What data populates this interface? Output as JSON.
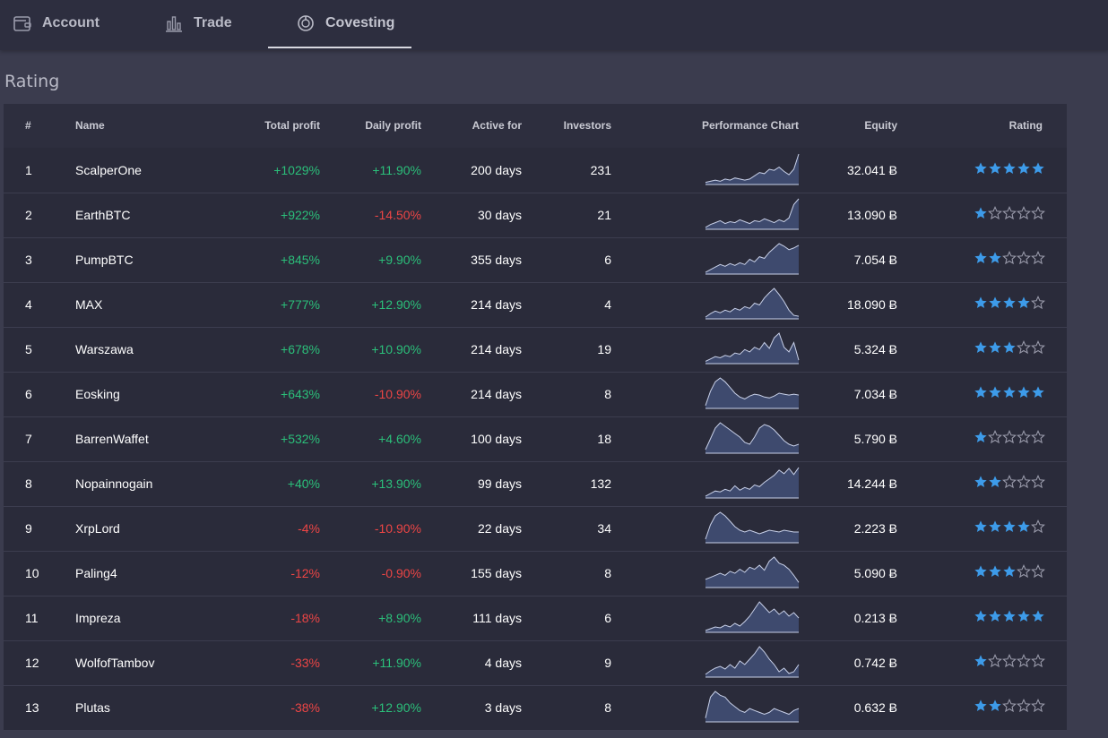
{
  "tabs": [
    {
      "label": "Account",
      "icon": "wallet-icon"
    },
    {
      "label": "Trade",
      "icon": "chart-bars-icon"
    },
    {
      "label": "Covesting",
      "icon": "covesting-icon",
      "active": true
    }
  ],
  "page_title": "Rating",
  "columns": {
    "rank": "#",
    "name": "Name",
    "total_profit": "Total profit",
    "daily_profit": "Daily profit",
    "active_for": "Active for",
    "investors": "Investors",
    "performance": "Performance Chart",
    "equity": "Equity",
    "rating": "Rating"
  },
  "colors": {
    "positive": "#2bbf7a",
    "negative": "#ec4545",
    "star": "#3d9be9",
    "spark_fill": "#3e4a6e",
    "spark_line": "#c8d0e8"
  },
  "rows": [
    {
      "rank": "1",
      "name": "ScalperOne",
      "total_profit": "+1029%",
      "daily_profit": "+11.90%",
      "active_for": "200 days",
      "investors": "231",
      "equity": "32.041 Ƀ",
      "rating": 5,
      "spark": [
        2,
        3,
        4,
        3,
        5,
        4,
        6,
        5,
        4,
        5,
        8,
        11,
        10,
        14,
        13,
        16,
        12,
        9,
        14,
        28
      ]
    },
    {
      "rank": "2",
      "name": "EarthBTC",
      "total_profit": "+922%",
      "daily_profit": "-14.50%",
      "active_for": "30 days",
      "investors": "21",
      "equity": "13.090 Ƀ",
      "rating": 1,
      "spark": [
        2,
        5,
        7,
        9,
        6,
        8,
        7,
        10,
        8,
        6,
        9,
        8,
        11,
        9,
        7,
        10,
        8,
        12,
        26,
        32
      ]
    },
    {
      "rank": "3",
      "name": "PumpBTC",
      "total_profit": "+845%",
      "daily_profit": "+9.90%",
      "active_for": "355 days",
      "investors": "6",
      "equity": "7.054 Ƀ",
      "rating": 2,
      "spark": [
        2,
        5,
        8,
        11,
        9,
        12,
        10,
        13,
        11,
        17,
        14,
        20,
        18,
        25,
        30,
        35,
        32,
        28,
        30,
        33
      ]
    },
    {
      "rank": "4",
      "name": "MAX",
      "total_profit": "+777%",
      "daily_profit": "+12.90%",
      "active_for": "214 days",
      "investors": "4",
      "equity": "18.090 Ƀ",
      "rating": 4,
      "spark": [
        2,
        6,
        9,
        7,
        10,
        8,
        12,
        10,
        14,
        12,
        18,
        16,
        24,
        30,
        35,
        28,
        20,
        10,
        4,
        3
      ]
    },
    {
      "rank": "5",
      "name": "Warszawa",
      "total_profit": "+678%",
      "daily_profit": "+10.90%",
      "active_for": "214 days",
      "investors": "19",
      "equity": "5.324 Ƀ",
      "rating": 3,
      "spark": [
        2,
        4,
        6,
        5,
        7,
        6,
        9,
        8,
        12,
        10,
        14,
        12,
        18,
        13,
        22,
        26,
        14,
        10,
        18,
        3
      ]
    },
    {
      "rank": "6",
      "name": "Eosking",
      "total_profit": "+643%",
      "daily_profit": "-10.90%",
      "active_for": "214 days",
      "investors": "8",
      "equity": "7.034 Ƀ",
      "rating": 5,
      "spark": [
        3,
        18,
        28,
        32,
        28,
        22,
        16,
        12,
        10,
        13,
        15,
        14,
        12,
        11,
        13,
        16,
        15,
        14,
        15,
        14
      ]
    },
    {
      "rank": "7",
      "name": "BarrenWaffet",
      "total_profit": "+532%",
      "daily_profit": "+4.60%",
      "active_for": "100 days",
      "investors": "18",
      "equity": "5.790 Ƀ",
      "rating": 1,
      "spark": [
        4,
        16,
        28,
        34,
        30,
        26,
        22,
        18,
        12,
        10,
        18,
        28,
        32,
        30,
        26,
        20,
        14,
        10,
        8,
        10
      ]
    },
    {
      "rank": "8",
      "name": "Nopainnogain",
      "total_profit": "+40%",
      "daily_profit": "+13.90%",
      "active_for": "99 days",
      "investors": "132",
      "equity": "14.244 Ƀ",
      "rating": 2,
      "spark": [
        2,
        5,
        8,
        7,
        10,
        8,
        14,
        9,
        12,
        10,
        15,
        13,
        18,
        22,
        26,
        32,
        28,
        34,
        27,
        35
      ]
    },
    {
      "rank": "9",
      "name": "XrpLord",
      "total_profit": "-4%",
      "daily_profit": "-10.90%",
      "active_for": "22 days",
      "investors": "34",
      "equity": "2.223 Ƀ",
      "rating": 4,
      "spark": [
        4,
        20,
        30,
        34,
        30,
        24,
        18,
        14,
        12,
        14,
        12,
        10,
        12,
        14,
        13,
        12,
        14,
        13,
        12,
        12
      ]
    },
    {
      "rank": "10",
      "name": "Paling4",
      "total_profit": "-12%",
      "daily_profit": "-0.90%",
      "active_for": "155 days",
      "investors": "8",
      "equity": "5.090 Ƀ",
      "rating": 3,
      "spark": [
        8,
        10,
        12,
        14,
        12,
        16,
        14,
        18,
        15,
        20,
        18,
        22,
        17,
        26,
        30,
        24,
        22,
        18,
        12,
        5
      ]
    },
    {
      "rank": "11",
      "name": "Impreza",
      "total_profit": "-18%",
      "daily_profit": "+8.90%",
      "active_for": "111 days",
      "investors": "6",
      "equity": "0.213 Ƀ",
      "rating": 5,
      "spark": [
        2,
        4,
        6,
        5,
        8,
        6,
        10,
        7,
        12,
        18,
        26,
        34,
        28,
        22,
        26,
        20,
        24,
        18,
        22,
        16
      ]
    },
    {
      "rank": "12",
      "name": "WolfofTambov",
      "total_profit": "-33%",
      "daily_profit": "+11.90%",
      "active_for": "4 days",
      "investors": "9",
      "equity": "0.742 Ƀ",
      "rating": 1,
      "spark": [
        3,
        7,
        10,
        12,
        9,
        14,
        10,
        18,
        14,
        20,
        26,
        34,
        28,
        20,
        14,
        6,
        10,
        4,
        6,
        14
      ]
    },
    {
      "rank": "13",
      "name": "Plutas",
      "total_profit": "-38%",
      "daily_profit": "+12.90%",
      "active_for": "3 days",
      "investors": "8",
      "equity": "0.632 Ƀ",
      "rating": 2,
      "spark": [
        4,
        26,
        32,
        28,
        26,
        20,
        16,
        12,
        10,
        14,
        12,
        10,
        8,
        10,
        14,
        12,
        10,
        8,
        12,
        14
      ]
    }
  ]
}
